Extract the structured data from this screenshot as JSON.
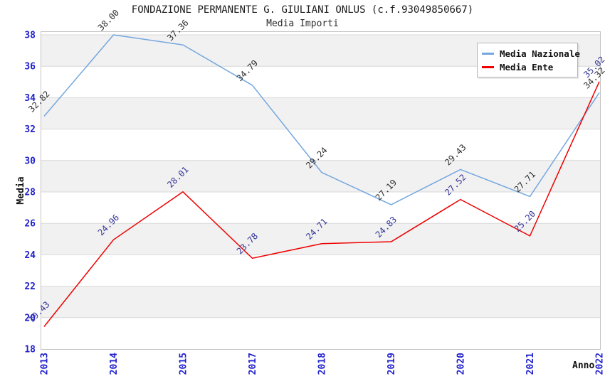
{
  "header": {
    "title": "FONDAZIONE PERMANENTE G. GIULIANI ONLUS (c.f.93049850667)",
    "subtitle": "Media Importi"
  },
  "chart_data": {
    "type": "line",
    "title": "FONDAZIONE PERMANENTE G. GIULIANI ONLUS (c.f.93049850667)",
    "subtitle": "Media Importi",
    "xlabel": "Anno",
    "ylabel": "Media",
    "categories": [
      "2013",
      "2014",
      "2015",
      "2017",
      "2018",
      "2019",
      "2020",
      "2021",
      "2022"
    ],
    "series": [
      {
        "name": "Media Nazionale",
        "color": "#74a7df",
        "label_color": "#2e2e2e",
        "values": [
          32.82,
          38.0,
          37.36,
          34.79,
          29.24,
          27.19,
          29.43,
          27.71,
          34.32
        ]
      },
      {
        "name": "Media Ente",
        "color": "#ee0000",
        "label_color": "#333399",
        "values": [
          19.43,
          24.96,
          28.01,
          23.78,
          24.71,
          24.83,
          27.52,
          25.2,
          35.02
        ]
      }
    ],
    "ylim": [
      18,
      38
    ],
    "ytick_step": 2,
    "grid": "horizontal gridlines with alternating gray bands every 2 units",
    "legend_position": "top-right",
    "colors": {
      "tick_label": "#2121cc",
      "band_fill": "#f1f1f1",
      "gridline": "#d8d8d8",
      "frame": "#c4c4c4"
    }
  }
}
